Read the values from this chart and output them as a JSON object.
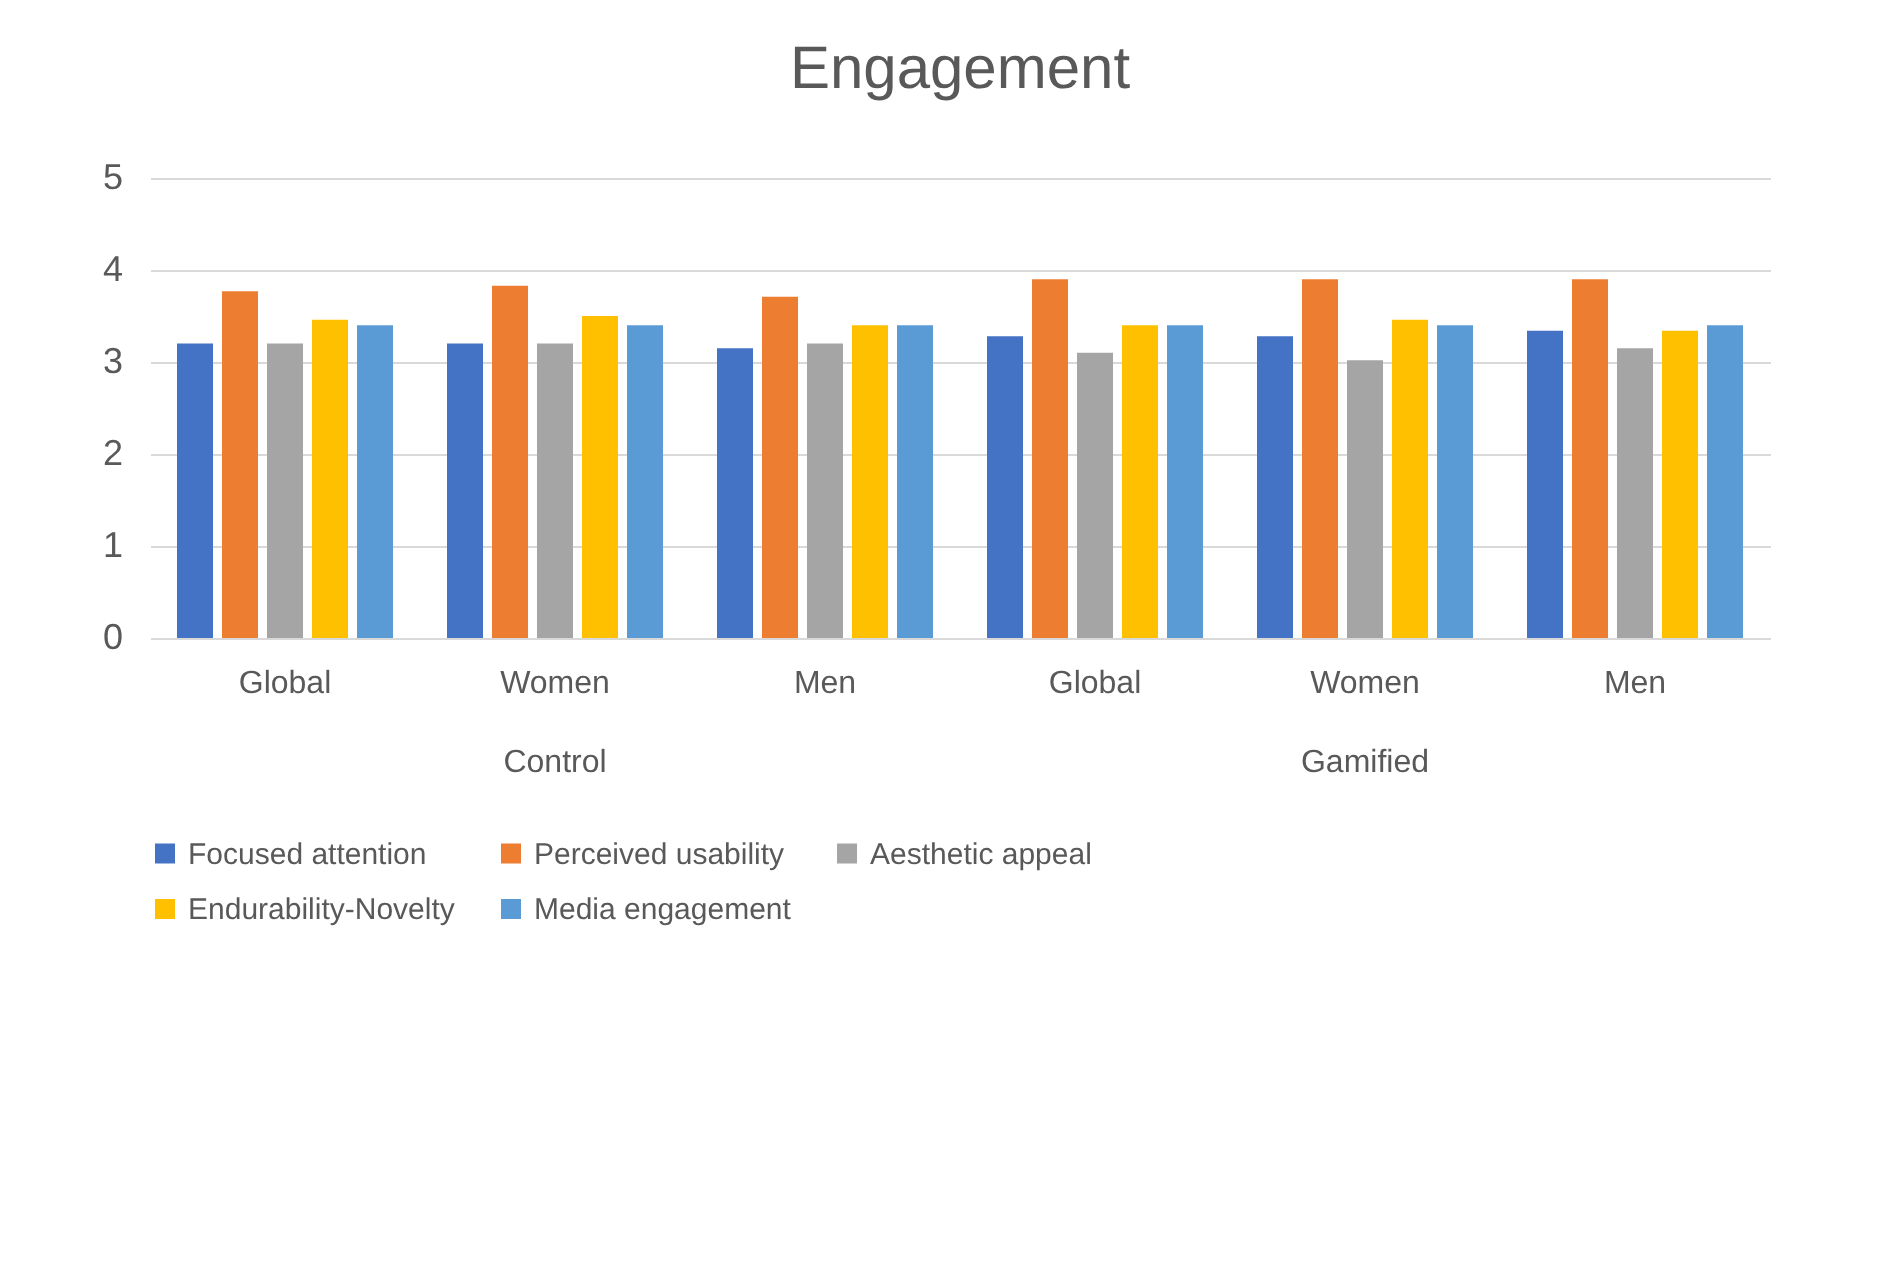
{
  "chart_data": {
    "type": "bar",
    "title": "Engagement",
    "categories": [
      "Global",
      "Women",
      "Men",
      "Global",
      "Women",
      "Men"
    ],
    "annotations": [
      "Control",
      "Gamified"
    ],
    "series": [
      {
        "name": "Focused attention",
        "color": "#4472c4",
        "values": [
          3.2,
          3.2,
          3.15,
          3.28,
          3.28,
          3.34
        ]
      },
      {
        "name": "Perceived usability",
        "color": "#ed7d31",
        "values": [
          3.77,
          3.83,
          3.71,
          3.9,
          3.9,
          3.9
        ]
      },
      {
        "name": "Aesthetic appeal",
        "color": "#a5a5a5",
        "values": [
          3.2,
          3.2,
          3.2,
          3.1,
          3.02,
          3.15
        ]
      },
      {
        "name": "Endurability-Novelty",
        "color": "#ffc000",
        "values": [
          3.46,
          3.5,
          3.4,
          3.4,
          3.46,
          3.34
        ]
      },
      {
        "name": "Media engagement",
        "color": "#5b9bd5",
        "values": [
          3.4,
          3.4,
          3.4,
          3.4,
          3.4,
          3.4
        ]
      }
    ],
    "ylim": [
      0,
      5
    ],
    "yticks": [
      0,
      1,
      2,
      3,
      4,
      5
    ],
    "grid": "y",
    "legend": "bottom"
  }
}
